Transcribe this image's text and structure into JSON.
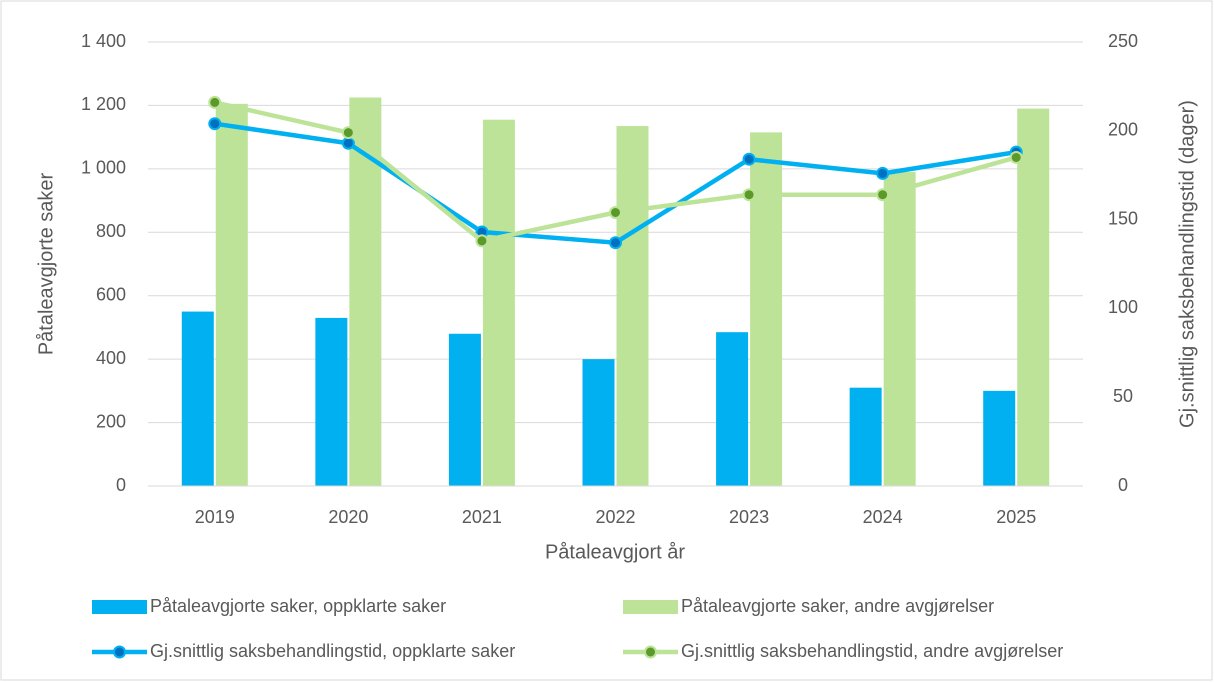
{
  "chart_data": {
    "type": "bar_line",
    "x_label": "Påtaleavgjort år",
    "y_label": "Påtaleavgjorte saker",
    "y2_label": "Gj.snittlig saksbehandlingstid (dager)",
    "categories": [
      "2019",
      "2020",
      "2021",
      "2022",
      "2023",
      "2024",
      "2025"
    ],
    "series": [
      {
        "name": "Påtaleavgjorte saker, oppklarte saker",
        "type": "bar",
        "color": "#00b0f0",
        "values": [
          550,
          530,
          480,
          400,
          485,
          310,
          300
        ]
      },
      {
        "name": "Påtaleavgjorte saker, andre avgjørelser",
        "type": "bar",
        "color": "#bde398",
        "values": [
          1205,
          1225,
          1155,
          1135,
          1115,
          990,
          1190
        ]
      },
      {
        "name": "Gj.snittlig saksbehandlingstid, oppklarte saker",
        "type": "line",
        "axis": "y2",
        "color": "#00b0f0",
        "marker_color": "#0070c0",
        "values": [
          204,
          193,
          143,
          137,
          184,
          176,
          188
        ]
      },
      {
        "name": "Gj.snittlig saksbehandlingstid, andre avgjørelser",
        "type": "line",
        "axis": "y2",
        "color": "#bde398",
        "marker_color": "#5b9a2a",
        "values": [
          216,
          199,
          138,
          154,
          164,
          164,
          185
        ]
      }
    ],
    "ylim": [
      0,
      1400
    ],
    "yticks": [
      0,
      200,
      400,
      600,
      800,
      {
        "value": 1000,
        "label": "1 000"
      },
      {
        "value": 1200,
        "label": "1 200"
      },
      {
        "value": 1400,
        "label": "1 400"
      }
    ],
    "y2lim": [
      0,
      250
    ],
    "y2ticks": [
      0,
      50,
      100,
      150,
      200,
      250
    ],
    "grid": true,
    "legend": "bottom"
  }
}
